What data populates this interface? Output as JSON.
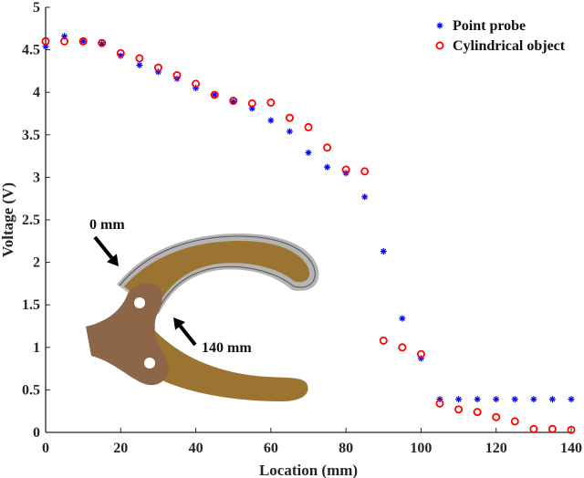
{
  "chart_data": {
    "type": "scatter",
    "title": "",
    "xlabel": "Location (mm)",
    "ylabel": "Voltage (V)",
    "xlim": [
      0,
      140
    ],
    "ylim": [
      0,
      5
    ],
    "xticks": [
      0,
      20,
      40,
      60,
      80,
      100,
      120,
      140
    ],
    "yticks": [
      0,
      0.5,
      1,
      1.5,
      2,
      2.5,
      3,
      3.5,
      4,
      4.5,
      5
    ],
    "ytick_labels": [
      "0",
      "0.5",
      "1",
      "1.5",
      "2",
      "2.5",
      "3",
      "3.5",
      "4",
      "4.5",
      "5"
    ],
    "grid": false,
    "legend_position": "upper right",
    "x": [
      0,
      5,
      10,
      15,
      20,
      25,
      30,
      35,
      40,
      45,
      50,
      55,
      60,
      65,
      70,
      75,
      80,
      85,
      90,
      95,
      100,
      105,
      110,
      115,
      120,
      125,
      130,
      135,
      140
    ],
    "series": [
      {
        "name": "Point probe",
        "marker": "asterisk",
        "color": "#0000ff",
        "values": [
          4.54,
          4.66,
          4.6,
          4.57,
          4.43,
          4.32,
          4.24,
          4.16,
          4.05,
          3.97,
          3.89,
          3.81,
          3.67,
          3.54,
          3.29,
          3.12,
          3.05,
          2.77,
          2.13,
          1.34,
          0.87,
          0.39,
          0.39,
          0.39,
          0.39,
          0.39,
          0.39,
          0.39,
          0.39
        ]
      },
      {
        "name": "Cylindrical object",
        "marker": "circle",
        "color": "#ff0000",
        "values": [
          4.6,
          4.6,
          4.6,
          4.58,
          4.46,
          4.4,
          4.29,
          4.2,
          4.1,
          3.97,
          3.9,
          3.87,
          3.88,
          3.7,
          3.59,
          3.35,
          3.09,
          3.07,
          1.08,
          1.0,
          0.92,
          0.34,
          0.27,
          0.24,
          0.18,
          0.13,
          0.04,
          0.04,
          0.03
        ]
      }
    ],
    "annotations": [
      {
        "text": "0 mm",
        "type": "arrow-label"
      },
      {
        "text": "140 mm",
        "type": "arrow-label"
      }
    ]
  },
  "inset": {
    "label_start": "0 mm",
    "label_end": "140 mm",
    "colors": {
      "finger": "#9c7432",
      "hub": "#8d6549",
      "sensor": "#b4b4b4",
      "sensor_line": "#555555"
    }
  }
}
